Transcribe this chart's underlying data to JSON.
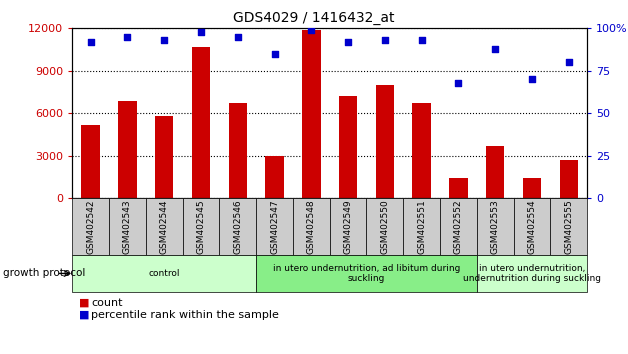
{
  "title": "GDS4029 / 1416432_at",
  "samples": [
    "GSM402542",
    "GSM402543",
    "GSM402544",
    "GSM402545",
    "GSM402546",
    "GSM402547",
    "GSM402548",
    "GSM402549",
    "GSM402550",
    "GSM402551",
    "GSM402552",
    "GSM402553",
    "GSM402554",
    "GSM402555"
  ],
  "count_values": [
    5200,
    6900,
    5800,
    10700,
    6700,
    3000,
    11900,
    7200,
    8000,
    6700,
    1400,
    3700,
    1400,
    2700
  ],
  "percentile_values": [
    92,
    95,
    93,
    98,
    95,
    85,
    99,
    92,
    93,
    93,
    68,
    88,
    70,
    80
  ],
  "bar_color": "#cc0000",
  "dot_color": "#0000cc",
  "ylim_left": [
    0,
    12000
  ],
  "ylim_right": [
    0,
    100
  ],
  "yticks_left": [
    0,
    3000,
    6000,
    9000,
    12000
  ],
  "yticks_right": [
    0,
    25,
    50,
    75,
    100
  ],
  "ytick_labels_right": [
    "0",
    "25",
    "50",
    "75",
    "100%"
  ],
  "groups": [
    {
      "label": "control",
      "start": 0,
      "end": 5,
      "color": "#ccffcc"
    },
    {
      "label": "in utero undernutrition, ad libitum during\nsuckling",
      "start": 5,
      "end": 11,
      "color": "#88ee88"
    },
    {
      "label": "in utero undernutrition,\nundernutrition during suckling",
      "start": 11,
      "end": 14,
      "color": "#ccffcc"
    }
  ],
  "legend_count_label": "count",
  "legend_pct_label": "percentile rank within the sample",
  "growth_protocol_label": "growth protocol",
  "bar_width": 0.5,
  "sample_bg_color": "#cccccc",
  "group_border_color": "#000000"
}
